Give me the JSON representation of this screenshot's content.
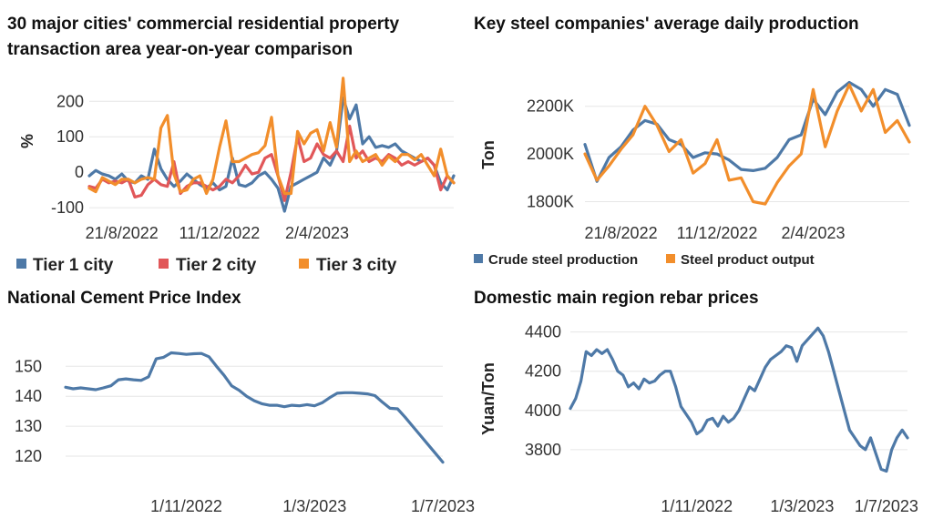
{
  "colors": {
    "tier1": "#4E79A7",
    "tier2": "#E15759",
    "tier3": "#F28E2B"
  },
  "chart_data": [
    {
      "type": "line",
      "title_lines": [
        "30 major cities' commercial residential property",
        "transaction area year-on-year comparison"
      ],
      "ylabel": "%",
      "xlabel": "",
      "ylim": [
        -110,
        270
      ],
      "yticks": [
        -100,
        0,
        100,
        200
      ],
      "xtick_labels": [
        "21/8/2022",
        "11/12/2022",
        "2/4/2023"
      ],
      "xtick_positions": [
        5,
        20,
        35
      ],
      "x_count": 57,
      "legend_position": "bottom",
      "series": [
        {
          "name": "Tier 1 city",
          "color": "#4E79A7",
          "values": [
            -10,
            5,
            -5,
            -10,
            -20,
            -5,
            -25,
            -30,
            -10,
            -20,
            65,
            10,
            -20,
            -40,
            -25,
            -5,
            -20,
            -35,
            -45,
            -30,
            -50,
            -40,
            40,
            -35,
            -40,
            -30,
            -10,
            0,
            -20,
            -45,
            -110,
            -40,
            -30,
            -20,
            -10,
            0,
            40,
            20,
            60,
            210,
            150,
            190,
            80,
            100,
            70,
            75,
            70,
            80,
            60,
            50,
            40,
            30,
            40,
            20,
            -30,
            -50,
            -10
          ]
        },
        {
          "name": "Tier 2 city",
          "color": "#E15759",
          "values": [
            -40,
            -45,
            -20,
            -30,
            -25,
            -30,
            -20,
            -70,
            -65,
            -35,
            -20,
            -35,
            -40,
            30,
            -60,
            -40,
            -30,
            -30,
            -40,
            -50,
            -40,
            -20,
            -30,
            -10,
            20,
            -5,
            0,
            40,
            50,
            -10,
            -80,
            0,
            100,
            30,
            40,
            80,
            50,
            40,
            60,
            30,
            130,
            40,
            60,
            30,
            40,
            30,
            50,
            40,
            20,
            30,
            20,
            30,
            40,
            20,
            -50,
            -10,
            -30
          ]
        },
        {
          "name": "Tier 3 city",
          "color": "#F28E2B",
          "values": [
            -45,
            -55,
            -15,
            -25,
            -35,
            -20,
            -20,
            -30,
            -20,
            -15,
            -20,
            125,
            160,
            -5,
            -55,
            -50,
            -20,
            -10,
            -60,
            -20,
            70,
            145,
            30,
            30,
            40,
            50,
            55,
            75,
            155,
            -10,
            -60,
            -60,
            115,
            80,
            110,
            120,
            60,
            140,
            70,
            265,
            30,
            60,
            30,
            40,
            50,
            20,
            45,
            30,
            50,
            50,
            35,
            50,
            20,
            -10,
            65,
            -10,
            -30
          ]
        }
      ]
    },
    {
      "type": "line",
      "title": "Key steel companies' average daily production",
      "ylabel": "Ton",
      "xlabel": "",
      "ylim": [
        1760,
        2340
      ],
      "yticks": [
        1800,
        2000,
        2200
      ],
      "ytick_labels": [
        "1800K",
        "2000K",
        "2200K"
      ],
      "xtick_labels": [
        "21/8/2022",
        "11/12/2022",
        "2/4/2023"
      ],
      "xtick_positions": [
        3,
        11,
        19
      ],
      "x_count": 28,
      "legend_position": "bottom",
      "series": [
        {
          "name": "Crude steel production",
          "color": "#4E79A7",
          "values": [
            2040,
            1885,
            1985,
            2030,
            2100,
            2140,
            2125,
            2060,
            2040,
            1985,
            2005,
            2000,
            1975,
            1935,
            1930,
            1940,
            1985,
            2060,
            2080,
            2230,
            2165,
            2260,
            2300,
            2270,
            2200,
            2270,
            2250,
            2120
          ]
        },
        {
          "name": "Steel product output",
          "color": "#F28E2B",
          "values": [
            2000,
            1890,
            1950,
            2020,
            2080,
            2200,
            2120,
            2010,
            2060,
            1920,
            1960,
            2060,
            1890,
            1900,
            1800,
            1790,
            1880,
            1950,
            2000,
            2270,
            2030,
            2180,
            2290,
            2180,
            2270,
            2090,
            2140,
            2050
          ]
        }
      ]
    },
    {
      "type": "line",
      "title": "National Cement Price Index",
      "ylabel": "",
      "xlabel": "",
      "ylim": [
        113,
        158
      ],
      "yticks": [
        120,
        130,
        140,
        150
      ],
      "xtick_labels": [
        "1/11/2022",
        "1/3/2023",
        "1/7/2023"
      ],
      "xtick_positions": [
        16,
        33,
        50
      ],
      "x_count": 51,
      "legend_position": "none",
      "series": [
        {
          "name": "",
          "color": "#4E79A7",
          "values": [
            143,
            142.5,
            142.8,
            142.5,
            142.2,
            142.8,
            143.5,
            145.5,
            145.8,
            145.5,
            145.3,
            146.5,
            152.5,
            153,
            154.5,
            154.3,
            154,
            154.2,
            154.3,
            153.2,
            150,
            147,
            143.5,
            142,
            140,
            138.5,
            137.5,
            137,
            137,
            136.5,
            137,
            136.8,
            137.2,
            136.8,
            137.8,
            139.5,
            141,
            141.2,
            141.2,
            141,
            140.8,
            140.2,
            138,
            136,
            135.8,
            133,
            130,
            127,
            124,
            121,
            118
          ]
        }
      ]
    },
    {
      "type": "line",
      "title": "Domestic main region rebar prices",
      "ylabel": "Yuan/Ton",
      "xlabel": "",
      "ylim": [
        3660,
        4440
      ],
      "yticks": [
        3800,
        4000,
        4200,
        4400
      ],
      "xtick_labels": [
        "1/11/2022",
        "1/3/2023",
        "1/7/2023"
      ],
      "xtick_positions": [
        24,
        44,
        60
      ],
      "x_count": 65,
      "legend_position": "none",
      "series": [
        {
          "name": "",
          "color": "#4E79A7",
          "values": [
            4010,
            4060,
            4150,
            4300,
            4280,
            4310,
            4290,
            4310,
            4260,
            4200,
            4180,
            4120,
            4140,
            4110,
            4160,
            4140,
            4150,
            4180,
            4200,
            4200,
            4120,
            4020,
            3980,
            3940,
            3880,
            3900,
            3950,
            3960,
            3920,
            3970,
            3940,
            3960,
            4000,
            4060,
            4120,
            4100,
            4160,
            4220,
            4260,
            4280,
            4300,
            4330,
            4320,
            4250,
            4330,
            4360,
            4390,
            4420,
            4380,
            4300,
            4200,
            4100,
            4000,
            3900,
            3860,
            3820,
            3800,
            3860,
            3780,
            3700,
            3690,
            3800,
            3860,
            3900,
            3860
          ]
        }
      ]
    }
  ]
}
